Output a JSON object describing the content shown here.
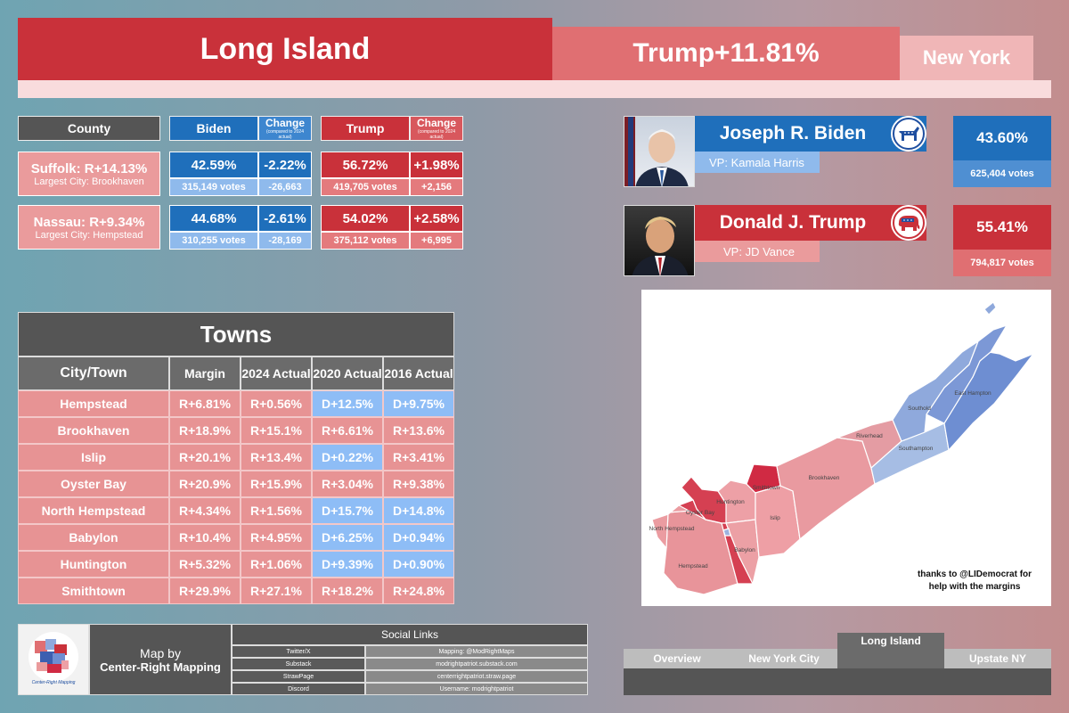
{
  "header": {
    "title": "Long Island",
    "margin": "Trump+11.81%",
    "state": "New York"
  },
  "colors": {
    "dem_dark": "#1f6fbb",
    "dem_light": "#8fbaec",
    "rep_dark": "#c9313a",
    "rep_light": "#ea9b9c",
    "rep_row": "#e79394",
    "dem_cell": "#8ebdf6",
    "gray_dark": "#555555"
  },
  "county_table": {
    "headers": {
      "county": "County",
      "biden": "Biden",
      "biden_change": "Change",
      "biden_change_note": "(compared to 2024 actual)",
      "trump": "Trump",
      "trump_change": "Change",
      "trump_change_note": "(compared to 2024 actual)"
    },
    "rows": [
      {
        "name": "Suffolk: R+14.13%",
        "city": "Largest City: Brookhaven",
        "biden_pct": "42.59%",
        "biden_change": "-2.22%",
        "biden_votes": "315,149 votes",
        "biden_vote_change": "-26,663",
        "trump_pct": "56.72%",
        "trump_change": "+1.98%",
        "trump_votes": "419,705 votes",
        "trump_vote_change": "+2,156"
      },
      {
        "name": "Nassau: R+9.34%",
        "city": "Largest City: Hempstead",
        "biden_pct": "44.68%",
        "biden_change": "-2.61%",
        "biden_votes": "310,255 votes",
        "biden_vote_change": "-28,169",
        "trump_pct": "54.02%",
        "trump_change": "+2.58%",
        "trump_votes": "375,112 votes",
        "trump_vote_change": "+6,995"
      }
    ]
  },
  "candidates": [
    {
      "name": "Joseph R. Biden",
      "vp": "VP: Kamala Harris",
      "pct": "43.60%",
      "votes": "625,404 votes",
      "party_icon": "donkey-icon"
    },
    {
      "name": "Donald J. Trump",
      "vp": "VP: JD Vance",
      "pct": "55.41%",
      "votes": "794,817 votes",
      "party_icon": "elephant-icon"
    }
  ],
  "towns": {
    "title": "Towns",
    "headers": [
      "City/Town",
      "Margin",
      "2024 Actual",
      "2020 Actual",
      "2016 Actual"
    ],
    "rows": [
      [
        "Hempstead",
        "R+6.81%",
        "R+0.56%",
        "D+12.5%",
        "D+9.75%"
      ],
      [
        "Brookhaven",
        "R+18.9%",
        "R+15.1%",
        "R+6.61%",
        "R+13.6%"
      ],
      [
        "Islip",
        "R+20.1%",
        "R+13.4%",
        "D+0.22%",
        "R+3.41%"
      ],
      [
        "Oyster Bay",
        "R+20.9%",
        "R+15.9%",
        "R+3.04%",
        "R+9.38%"
      ],
      [
        "North Hempstead",
        "R+4.34%",
        "R+1.56%",
        "D+15.7%",
        "D+14.8%"
      ],
      [
        "Babylon",
        "R+10.4%",
        "R+4.95%",
        "D+6.25%",
        "D+0.94%"
      ],
      [
        "Huntington",
        "R+5.32%",
        "R+1.06%",
        "D+9.39%",
        "D+0.90%"
      ],
      [
        "Smithtown",
        "R+29.9%",
        "R+27.1%",
        "R+18.2%",
        "R+24.8%"
      ]
    ]
  },
  "map": {
    "labels": {
      "east_hampton": "East\nHampton",
      "southold": "Southold",
      "riverhead": "Riverhead",
      "southampton": "Southampton",
      "brookhaven": "Brookhaven",
      "smithtown": "Smithtown",
      "huntington": "Huntington",
      "oyster_bay": "Oyster\nBay",
      "north_hempstead": "North\nHempstead",
      "islip": "Islip",
      "babylon": "Babylon",
      "hempstead": "Hempstead"
    },
    "credit_line1": "thanks to @LIDemocrat for",
    "credit_line2": "help with the margins"
  },
  "footer": {
    "map_by": "Map by",
    "author": "Center-Right Mapping",
    "logo_text": "Center-Right Mapping",
    "social_title": "Social Links",
    "social_rows": [
      [
        "Twitter/X",
        "Mapping: @ModRightMaps"
      ],
      [
        "Substack",
        "modrightpatriot.substack.com"
      ],
      [
        "StrawPage",
        "centerrightpatriot.straw.page"
      ],
      [
        "Discord",
        "Username: modrightpatriot"
      ]
    ]
  },
  "tabs": [
    "Overview",
    "New York City",
    "Long Island",
    "Upstate NY"
  ],
  "active_tab": "Long Island"
}
